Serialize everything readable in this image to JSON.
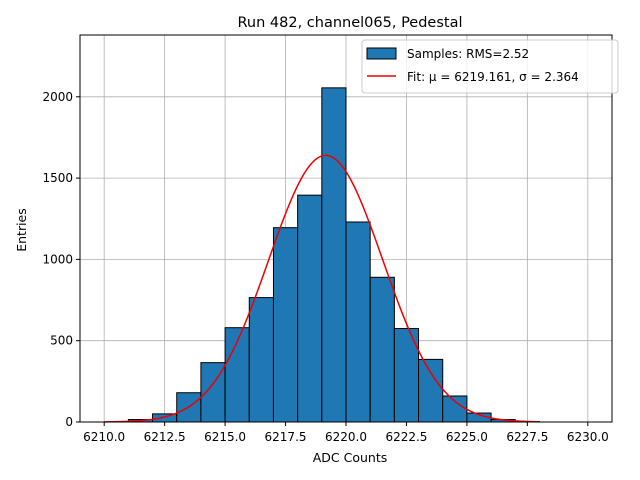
{
  "chart_data": {
    "type": "bar",
    "title": "Run 482, channel065, Pedestal",
    "xlabel": "ADC Counts",
    "ylabel": "Entries",
    "xlim": [
      6209.0,
      6231.0
    ],
    "ylim": [
      0,
      2380
    ],
    "grid": true,
    "legend_position": "top-right",
    "xticks": [
      6210.0,
      6212.5,
      6215.0,
      6217.5,
      6220.0,
      6222.5,
      6225.0,
      6227.5,
      6230.0
    ],
    "xtick_labels": [
      "6210.0",
      "6212.5",
      "6215.0",
      "6217.5",
      "6220.0",
      "6222.5",
      "6225.0",
      "6227.5",
      "6230.0"
    ],
    "yticks": [
      0,
      500,
      1000,
      1500,
      2000
    ],
    "ytick_labels": [
      "0",
      "500",
      "1000",
      "1500",
      "2000"
    ],
    "histogram": {
      "name": "Samples: RMS=2.52",
      "bin_edges": [
        6211,
        6212,
        6213,
        6214,
        6215,
        6216,
        6217,
        6218,
        6219,
        6220,
        6221,
        6222,
        6223,
        6224,
        6225,
        6226,
        6227,
        6228
      ],
      "values": [
        15,
        50,
        180,
        365,
        580,
        765,
        1195,
        1395,
        2055,
        1230,
        890,
        575,
        385,
        160,
        55,
        15,
        3
      ]
    },
    "fit": {
      "name": "Fit: μ = 6219.161, σ = 2.364",
      "mu": 6219.161,
      "sigma": 2.364,
      "amplitude": 1640,
      "x_range": [
        6210.0,
        6228.0
      ]
    },
    "legend": [
      {
        "label_prefix": "Samples: RMS=2.52",
        "label_suffix": ""
      },
      {
        "label_prefix": "Fit: μ = 6219.161, ",
        "label_suffix": "σ = 2.364"
      }
    ]
  }
}
